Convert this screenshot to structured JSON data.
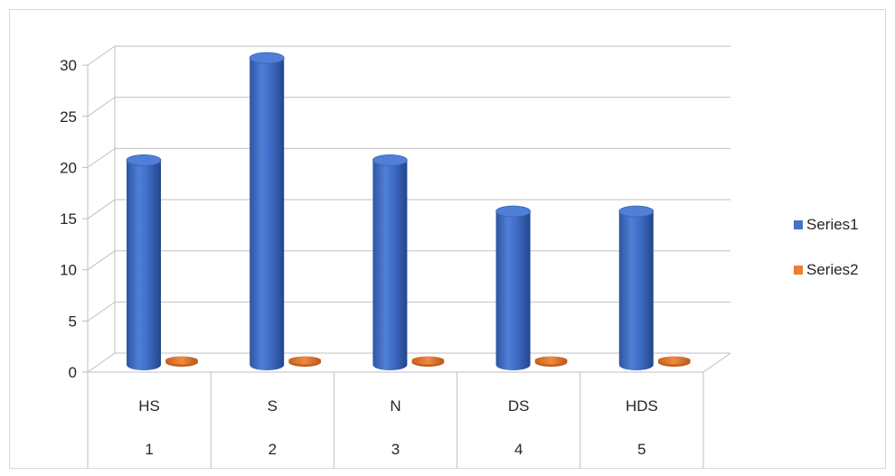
{
  "chart_data": {
    "type": "bar",
    "variant": "3d-cylinder",
    "categories": [
      {
        "top": "HS",
        "bottom": "1"
      },
      {
        "top": "S",
        "bottom": "2"
      },
      {
        "top": "N",
        "bottom": "3"
      },
      {
        "top": "DS",
        "bottom": "4"
      },
      {
        "top": "HDS",
        "bottom": "5"
      }
    ],
    "series": [
      {
        "name": "Series1",
        "values": [
          20,
          30,
          20,
          15,
          15
        ],
        "color": "#4472c4"
      },
      {
        "name": "Series2",
        "values": [
          0,
          0,
          0,
          0,
          0
        ],
        "color": "#ed7d31"
      }
    ],
    "ylim": [
      0,
      30
    ],
    "yticks": [
      "0",
      "5",
      "10",
      "15",
      "20",
      "25",
      "30"
    ],
    "grid": true,
    "legend_position": "right"
  }
}
